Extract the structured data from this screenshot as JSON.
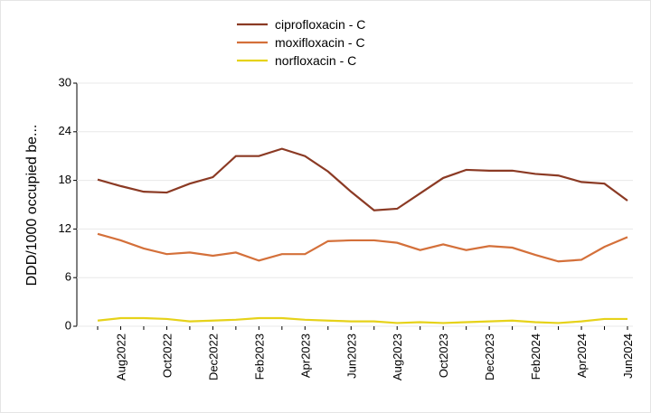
{
  "chart_data": {
    "type": "line",
    "y_label": "DDD/1000  occupied be...",
    "categories": [
      null,
      "Aug2022",
      null,
      "Oct2022",
      null,
      "Dec2022",
      null,
      "Feb2023",
      null,
      "Apr2023",
      null,
      "Jun2023",
      null,
      "Aug2023",
      null,
      "Oct2023",
      null,
      "Dec2023",
      null,
      "Feb2024",
      null,
      "Apr2024",
      null,
      "Jun2024"
    ],
    "series": [
      {
        "name": "ciprofloxacin - C",
        "color": "#8b3a24",
        "values": [
          18.1,
          17.3,
          16.6,
          16.5,
          17.6,
          18.4,
          21.0,
          21.0,
          21.9,
          21.0,
          19.1,
          16.6,
          14.3,
          14.5,
          16.4,
          18.3,
          19.3,
          19.2,
          19.2,
          18.8,
          18.6,
          17.8,
          17.6,
          15.5
        ]
      },
      {
        "name": "moxifloxacin - C",
        "color": "#d4703a",
        "values": [
          11.4,
          10.6,
          9.6,
          8.9,
          9.1,
          8.7,
          9.1,
          8.1,
          8.9,
          8.9,
          10.5,
          10.6,
          10.6,
          10.3,
          9.4,
          10.1,
          9.4,
          9.9,
          9.7,
          8.8,
          8.0,
          8.2,
          9.8,
          11.0
        ]
      },
      {
        "name": "norfloxacin - C",
        "color": "#e6d21a",
        "values": [
          0.7,
          1.0,
          1.0,
          0.9,
          0.6,
          0.7,
          0.8,
          1.0,
          1.0,
          0.8,
          0.7,
          0.6,
          0.6,
          0.4,
          0.5,
          0.4,
          0.5,
          0.6,
          0.7,
          0.5,
          0.4,
          0.6,
          0.9,
          0.9
        ]
      }
    ],
    "ylim": [
      0,
      30
    ],
    "yticks": [
      0,
      6,
      12,
      18,
      24,
      30
    ],
    "grid": true
  }
}
